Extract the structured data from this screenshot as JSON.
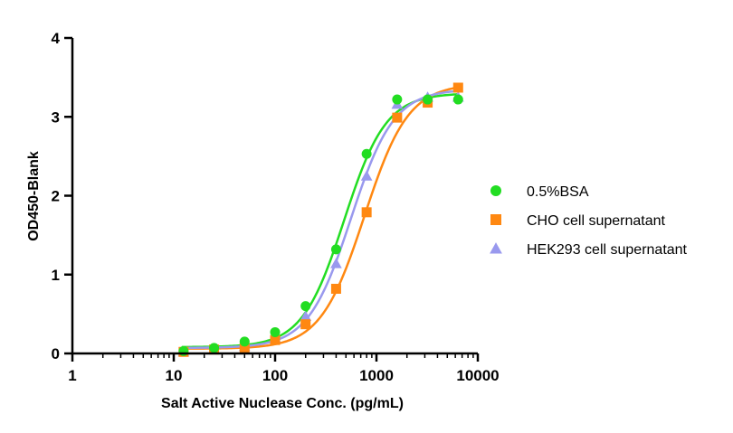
{
  "chart_data": {
    "type": "scatter",
    "title": "",
    "xlabel": "Salt Active Nuclease Conc. (pg/mL)",
    "ylabel": "OD450-Blank",
    "xscale": "log",
    "xlim": [
      1,
      10000
    ],
    "ylim": [
      0,
      4
    ],
    "xticks": [
      1,
      10,
      100,
      1000,
      10000
    ],
    "xtick_labels": [
      "1",
      "10",
      "100",
      "1000",
      "10000"
    ],
    "yticks": [
      0,
      1,
      2,
      3,
      4
    ],
    "ytick_labels": [
      "0",
      "1",
      "2",
      "3",
      "4"
    ],
    "grid": false,
    "legend_position": "right",
    "fit_curves": true,
    "series": [
      {
        "name": "0.5%BSA",
        "color": "#22dd22",
        "marker": "circle",
        "x": [
          12.5,
          25,
          50,
          100,
          200,
          400,
          800,
          1600,
          3200,
          6400
        ],
        "y": [
          0.03,
          0.07,
          0.15,
          0.27,
          0.6,
          1.32,
          2.53,
          3.22,
          3.22,
          3.22
        ],
        "fit": {
          "bottom": 0.08,
          "top": 3.3,
          "ec50": 480,
          "hill": 2.1
        }
      },
      {
        "name": "CHO cell supernatant",
        "color": "#ff8811",
        "marker": "square",
        "x": [
          12.5,
          25,
          50,
          100,
          200,
          400,
          800,
          1600,
          3200,
          6400
        ],
        "y": [
          0.02,
          0.05,
          0.07,
          0.17,
          0.37,
          0.82,
          1.79,
          2.99,
          3.18,
          3.37
        ],
        "fit": {
          "bottom": 0.06,
          "top": 3.42,
          "ec50": 760,
          "hill": 2.0
        }
      },
      {
        "name": "HEK293 cell supernatant",
        "color": "#9999ee",
        "marker": "triangle",
        "x": [
          12.5,
          25,
          50,
          100,
          200,
          400,
          800,
          1600,
          3200,
          6400
        ],
        "y": [
          0.02,
          0.05,
          0.09,
          0.2,
          0.47,
          1.14,
          2.25,
          3.16,
          3.25,
          3.25
        ],
        "fit": {
          "bottom": 0.07,
          "top": 3.35,
          "ec50": 560,
          "hill": 2.05
        }
      }
    ]
  }
}
